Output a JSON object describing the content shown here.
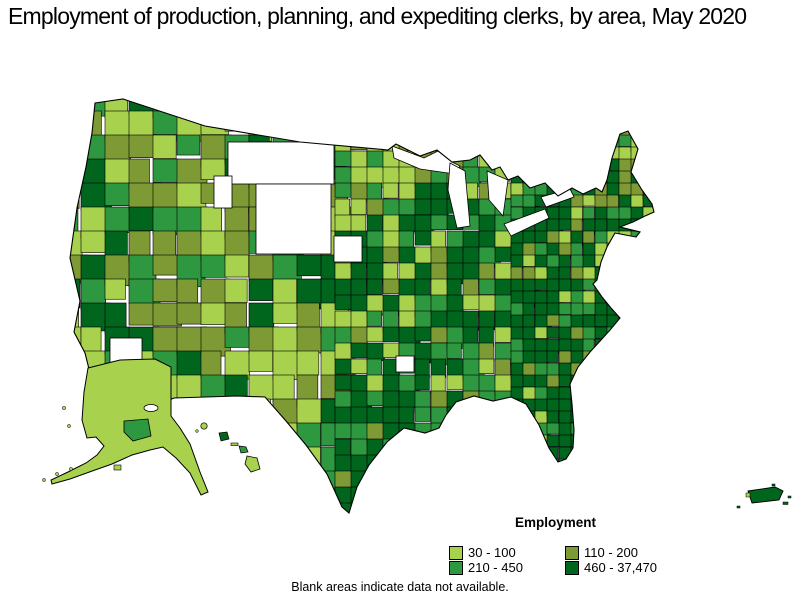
{
  "title": "Employment of production, planning, and expediting clerks, by area, May 2020",
  "legend": {
    "title": "Employment",
    "classes": [
      {
        "label": "30 - 100",
        "color": "#a8d14e"
      },
      {
        "label": "110 - 200",
        "color": "#7d9a35"
      },
      {
        "label": "210 - 450",
        "color": "#2e9840"
      },
      {
        "label": "460 - 37,470",
        "color": "#00651d"
      }
    ]
  },
  "note": "Blank areas indicate data not available.",
  "map": {
    "regions": [
      "Contiguous United States",
      "Alaska",
      "Hawaii",
      "Puerto Rico"
    ],
    "no_data_color": "#ffffff",
    "border_color": "#000000"
  }
}
